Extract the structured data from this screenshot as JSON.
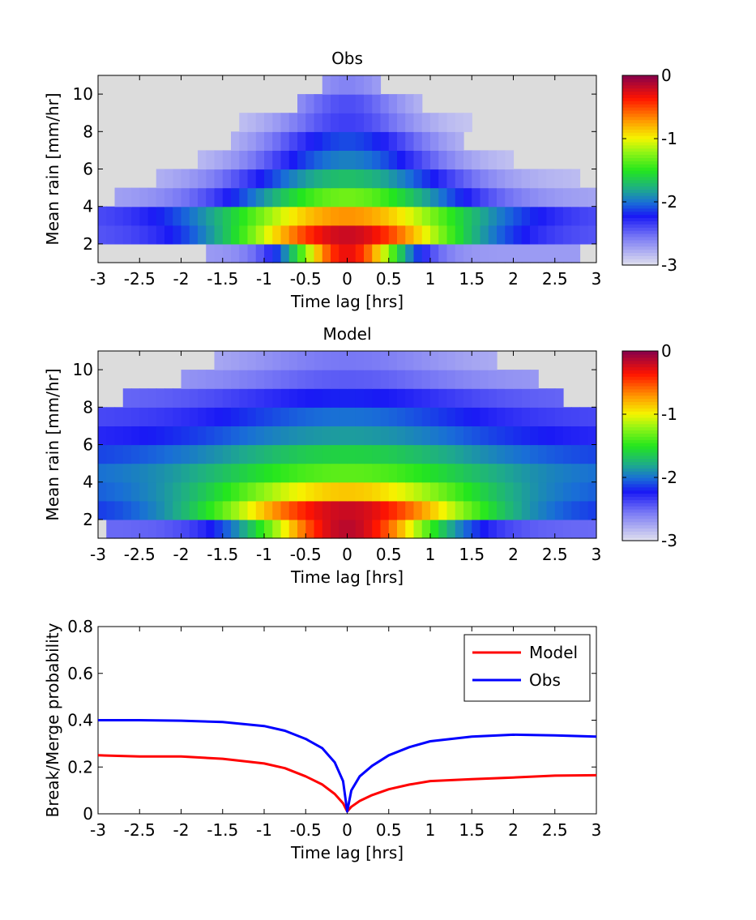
{
  "chart_data": [
    {
      "type": "heatmap",
      "title": "Obs",
      "xlabel": "Time lag [hrs]",
      "ylabel": "Mean rain [mm/hr]",
      "xlim": [
        -3,
        3
      ],
      "ylim": [
        1,
        11
      ],
      "x_ticks": [
        "-3",
        "-2.5",
        "-2",
        "-1.5",
        "-1",
        "-0.5",
        "0",
        "0.5",
        "1",
        "1.5",
        "2",
        "2.5",
        "3"
      ],
      "y_ticks": [
        "2",
        "4",
        "6",
        "8",
        "10"
      ],
      "colorbar": {
        "range": [
          -3,
          0
        ],
        "ticks": [
          "0",
          "-1",
          "-2",
          "-3"
        ]
      },
      "x_bins": 60,
      "rows": [
        {
          "ymin": 1,
          "ymax": 2,
          "xmin": -1.7,
          "xmax": 2.8,
          "peak": -0.3,
          "sigma": 0.5,
          "floor": -2.7
        },
        {
          "ymin": 2,
          "ymax": 3,
          "xmin": -3,
          "xmax": 3,
          "peak": -0.2,
          "sigma": 1.0,
          "floor": -2.45
        },
        {
          "ymin": 3,
          "ymax": 4,
          "xmin": -3,
          "xmax": 3,
          "peak": -0.7,
          "sigma": 1.15,
          "floor": -2.45
        },
        {
          "ymin": 4,
          "ymax": 5,
          "xmin": -2.8,
          "xmax": 3,
          "peak": -1.3,
          "sigma": 1.0,
          "floor": -2.75
        },
        {
          "ymin": 5,
          "ymax": 6,
          "xmin": -2.3,
          "xmax": 2.8,
          "peak": -1.7,
          "sigma": 0.95,
          "floor": -2.85
        },
        {
          "ymin": 6,
          "ymax": 7,
          "xmin": -1.8,
          "xmax": 2.0,
          "peak": -1.95,
          "sigma": 0.8,
          "floor": -2.9
        },
        {
          "ymin": 7,
          "ymax": 8,
          "xmin": -1.4,
          "xmax": 1.4,
          "peak": -2.1,
          "sigma": 0.7,
          "floor": -2.9
        },
        {
          "ymin": 8,
          "ymax": 9,
          "xmin": -1.3,
          "xmax": 1.5,
          "peak": -2.35,
          "sigma": 0.6,
          "floor": -2.9
        },
        {
          "ymin": 9,
          "ymax": 10,
          "xmin": -0.6,
          "xmax": 0.9,
          "peak": -2.4,
          "sigma": 0.5,
          "floor": -2.9
        },
        {
          "ymin": 10,
          "ymax": 11,
          "xmin": -0.25,
          "xmax": 0.45,
          "peak": -2.6,
          "sigma": 0.4,
          "floor": -2.9
        }
      ]
    },
    {
      "type": "heatmap",
      "title": "Model",
      "xlabel": "Time lag [hrs]",
      "ylabel": "Mean rain [mm/hr]",
      "xlim": [
        -3,
        3
      ],
      "ylim": [
        1,
        11
      ],
      "x_ticks": [
        "-3",
        "-2.5",
        "-2",
        "-1.5",
        "-1",
        "-0.5",
        "0",
        "0.5",
        "1",
        "1.5",
        "2",
        "2.5",
        "3"
      ],
      "y_ticks": [
        "2",
        "4",
        "6",
        "8",
        "10"
      ],
      "colorbar": {
        "range": [
          -3,
          0
        ],
        "ticks": [
          "0",
          "-1",
          "-2",
          "-3"
        ]
      },
      "x_bins": 60,
      "rows": [
        {
          "ymin": 1,
          "ymax": 2,
          "xmin": -2.9,
          "xmax": 3,
          "peak": -0.15,
          "sigma": 0.8,
          "floor": -2.5
        },
        {
          "ymin": 2,
          "ymax": 3,
          "xmin": -3,
          "xmax": 3,
          "peak": -0.2,
          "sigma": 1.15,
          "floor": -2.2
        },
        {
          "ymin": 3,
          "ymax": 4,
          "xmin": -3,
          "xmax": 3,
          "peak": -0.85,
          "sigma": 1.2,
          "floor": -2.1
        },
        {
          "ymin": 4,
          "ymax": 5,
          "xmin": -3,
          "xmax": 3,
          "peak": -1.35,
          "sigma": 1.3,
          "floor": -2.05
        },
        {
          "ymin": 5,
          "ymax": 6,
          "xmin": -3,
          "xmax": 3,
          "peak": -1.6,
          "sigma": 1.3,
          "floor": -2.15
        },
        {
          "ymin": 6,
          "ymax": 7,
          "xmin": -3,
          "xmax": 3,
          "peak": -1.85,
          "sigma": 1.3,
          "floor": -2.3
        },
        {
          "ymin": 7,
          "ymax": 8,
          "xmin": -3,
          "xmax": 3,
          "peak": -2.0,
          "sigma": 1.2,
          "floor": -2.4
        },
        {
          "ymin": 8,
          "ymax": 9,
          "xmin": -2.7,
          "xmax": 2.6,
          "peak": -2.2,
          "sigma": 1.1,
          "floor": -2.5
        },
        {
          "ymin": 9,
          "ymax": 10,
          "xmin": -2.0,
          "xmax": 2.3,
          "peak": -2.45,
          "sigma": 1.0,
          "floor": -2.7
        },
        {
          "ymin": 10,
          "ymax": 11,
          "xmin": -1.6,
          "xmax": 1.8,
          "peak": -2.55,
          "sigma": 0.9,
          "floor": -2.8
        }
      ]
    },
    {
      "type": "line",
      "title": "",
      "xlabel": "Time lag [hrs]",
      "ylabel": "Break/Merge probability",
      "xlim": [
        -3,
        3
      ],
      "ylim": [
        0,
        0.8
      ],
      "x_ticks": [
        "-3",
        "-2.5",
        "-2",
        "-1.5",
        "-1",
        "-0.5",
        "0",
        "0.5",
        "1",
        "1.5",
        "2",
        "2.5",
        "3"
      ],
      "y_ticks": [
        "0",
        "0.2",
        "0.4",
        "0.6",
        "0.8"
      ],
      "legend_position": "top-right",
      "series": [
        {
          "name": "Model",
          "color": "#ff0000",
          "x": [
            -3,
            -2.5,
            -2,
            -1.5,
            -1,
            -0.75,
            -0.5,
            -0.3,
            -0.15,
            -0.05,
            0,
            0.05,
            0.15,
            0.3,
            0.5,
            0.75,
            1,
            1.5,
            2,
            2.5,
            3
          ],
          "y": [
            0.25,
            0.245,
            0.245,
            0.235,
            0.215,
            0.195,
            0.16,
            0.125,
            0.085,
            0.045,
            0.01,
            0.03,
            0.055,
            0.08,
            0.105,
            0.125,
            0.14,
            0.148,
            0.155,
            0.163,
            0.165
          ]
        },
        {
          "name": "Obs",
          "color": "#0000ff",
          "x": [
            -3,
            -2.5,
            -2,
            -1.5,
            -1,
            -0.75,
            -0.5,
            -0.3,
            -0.15,
            -0.05,
            0,
            0.05,
            0.15,
            0.3,
            0.5,
            0.75,
            1,
            1.5,
            2,
            2.5,
            3
          ],
          "y": [
            0.4,
            0.4,
            0.398,
            0.392,
            0.375,
            0.355,
            0.32,
            0.28,
            0.22,
            0.14,
            0.01,
            0.1,
            0.16,
            0.205,
            0.25,
            0.285,
            0.31,
            0.33,
            0.338,
            0.335,
            0.33
          ]
        }
      ]
    }
  ]
}
